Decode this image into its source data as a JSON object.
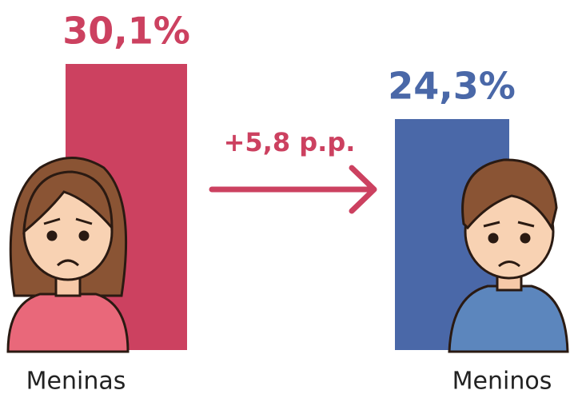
{
  "chart_data": {
    "type": "bar",
    "categories": [
      "Meninas",
      "Meninos"
    ],
    "values": [
      30.1,
      24.3
    ],
    "value_labels": [
      "30,1%",
      "24,3%"
    ],
    "colors": [
      "#cc4160",
      "#4a68a8"
    ],
    "annotation": "+5,8 p.p."
  }
}
